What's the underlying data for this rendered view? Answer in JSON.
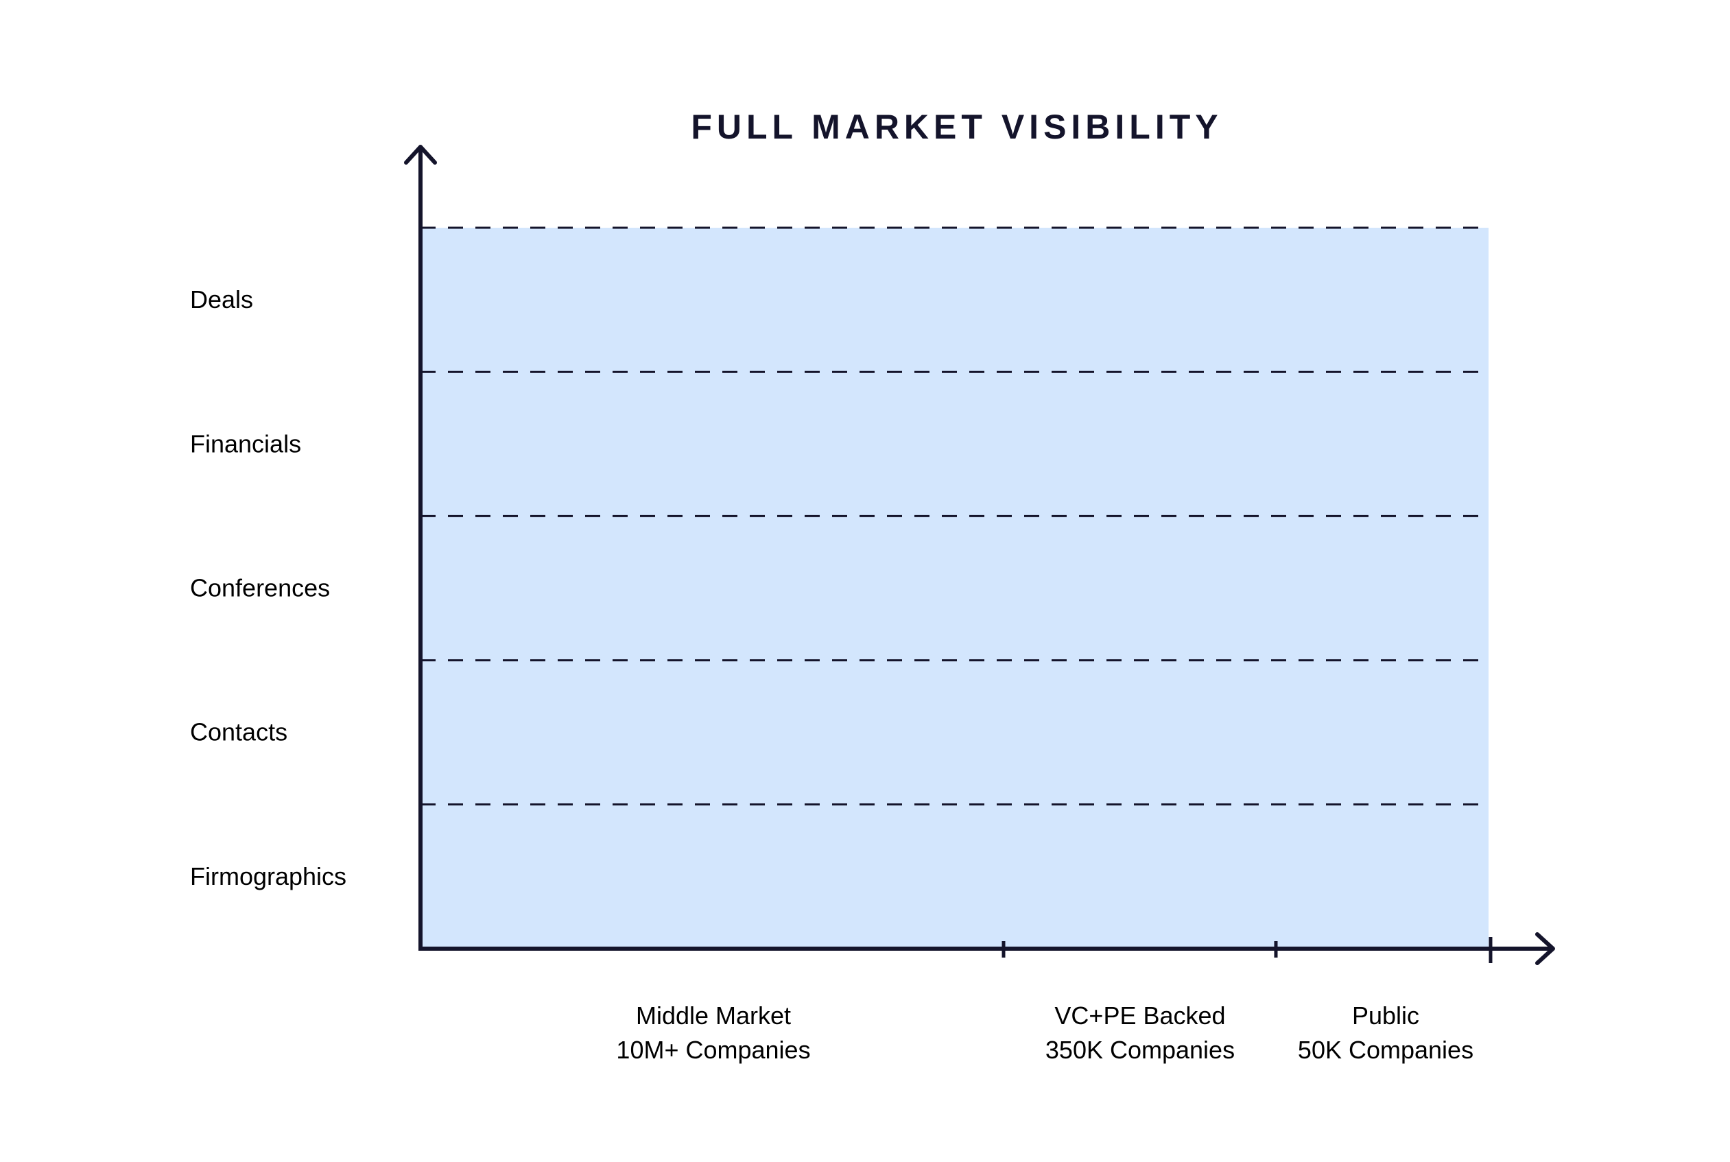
{
  "chart_data": {
    "type": "area",
    "title": "FULL MARKET VISIBILITY",
    "y_categories": [
      "Deals",
      "Financials",
      "Conferences",
      "Contacts",
      "Firmographics"
    ],
    "x_segments": [
      {
        "name": "Middle Market",
        "count": "10M+ Companies"
      },
      {
        "name": "VC+PE Backed",
        "count": "350K Companies"
      },
      {
        "name": "Public",
        "count": "50K Companies"
      }
    ],
    "coverage": "full",
    "grid": "dashed",
    "fill_color": "#d3e6fd",
    "axis_color": "#14142b"
  }
}
